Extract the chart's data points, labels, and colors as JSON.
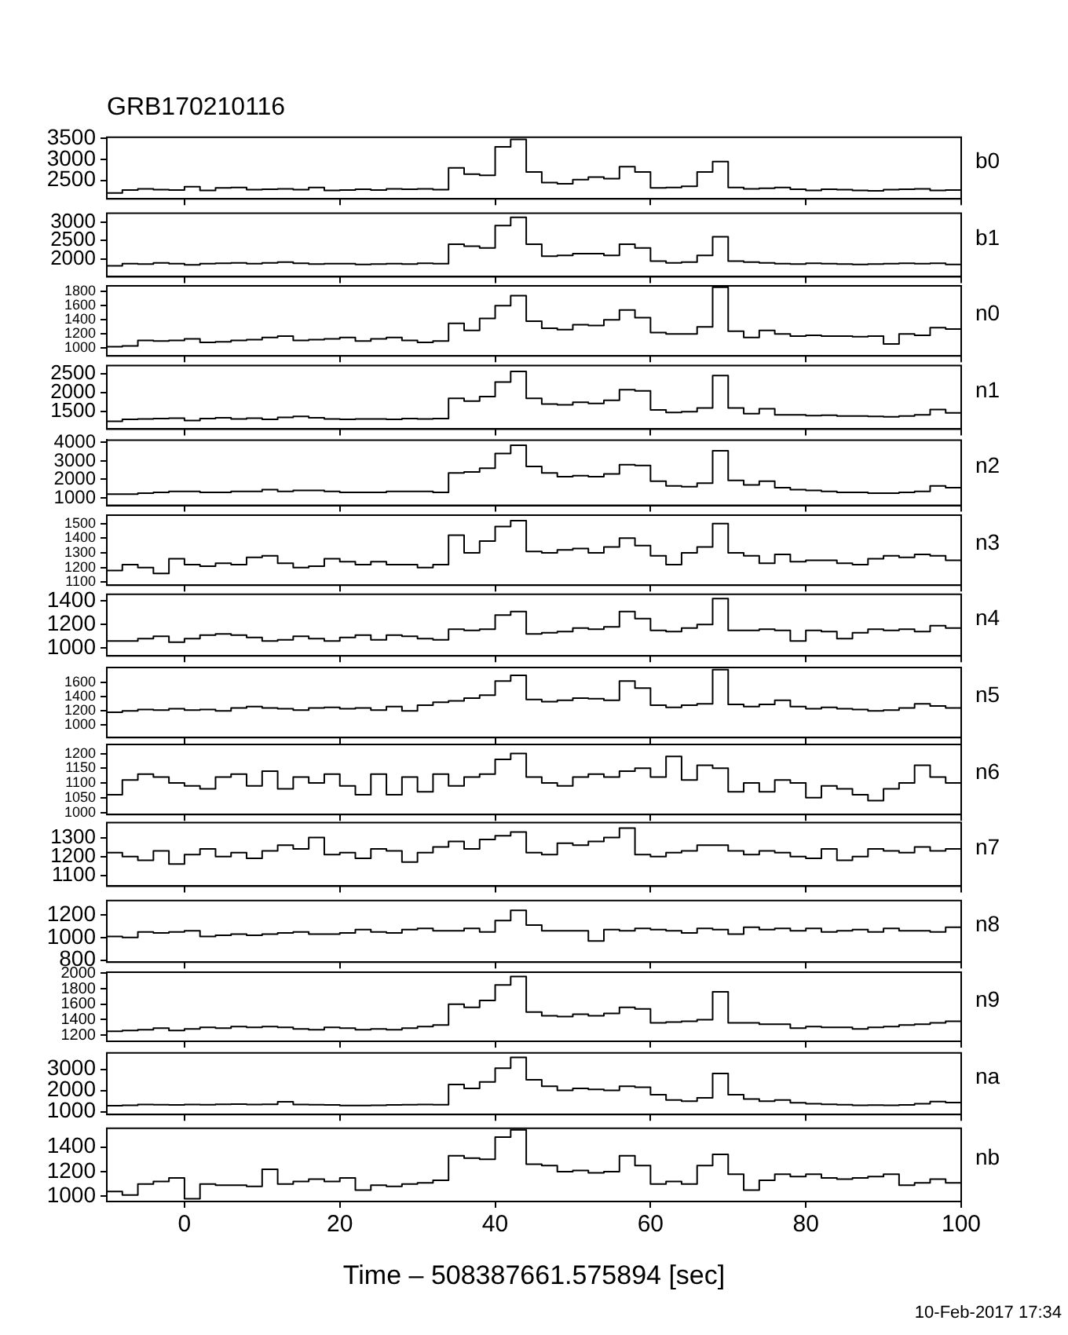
{
  "chart_data": [
    {
      "type": "step",
      "title": "GRB170210116",
      "x": [
        -10,
        -8,
        -6,
        -4,
        -2,
        0,
        2,
        4,
        6,
        8,
        10,
        12,
        14,
        16,
        18,
        20,
        22,
        24,
        26,
        28,
        30,
        32,
        34,
        36,
        38,
        40,
        42,
        44,
        46,
        48,
        50,
        52,
        54,
        56,
        58,
        60,
        62,
        64,
        66,
        68,
        70,
        72,
        74,
        76,
        78,
        80,
        82,
        84,
        86,
        88,
        90,
        92,
        94,
        96,
        98,
        100
      ],
      "xlim": [
        -10,
        100
      ],
      "xticks": [
        0,
        20,
        40,
        60,
        80,
        100
      ],
      "ylim": [
        2060,
        3530
      ],
      "yticks": [
        2500,
        3000,
        3500
      ],
      "tick_labels": "y",
      "series": [
        {
          "name": "b0",
          "color": "#000000",
          "values": [
            2200,
            2270,
            2300,
            2280,
            2270,
            2350,
            2260,
            2320,
            2330,
            2280,
            2290,
            2300,
            2280,
            2330,
            2260,
            2270,
            2290,
            2270,
            2300,
            2290,
            2300,
            2280,
            2800,
            2650,
            2620,
            3300,
            3480,
            2700,
            2450,
            2420,
            2520,
            2580,
            2540,
            2830,
            2700,
            2320,
            2330,
            2360,
            2700,
            2950,
            2330,
            2300,
            2310,
            2330,
            2290,
            2260,
            2290,
            2280,
            2260,
            2250,
            2280,
            2290,
            2300,
            2260,
            2270,
            2270
          ]
        }
      ]
    },
    {
      "type": "step",
      "x": [
        -10,
        -8,
        -6,
        -4,
        -2,
        0,
        2,
        4,
        6,
        8,
        10,
        12,
        14,
        16,
        18,
        20,
        22,
        24,
        26,
        28,
        30,
        32,
        34,
        36,
        38,
        40,
        42,
        44,
        46,
        48,
        50,
        52,
        54,
        56,
        58,
        60,
        62,
        64,
        66,
        68,
        70,
        72,
        74,
        76,
        78,
        80,
        82,
        84,
        86,
        88,
        90,
        92,
        94,
        96,
        98,
        100
      ],
      "xlim": [
        -10,
        100
      ],
      "xticks": [
        0,
        20,
        40,
        60,
        80,
        100
      ],
      "ylim": [
        1530,
        3230
      ],
      "yticks": [
        2000,
        2500,
        3000
      ],
      "tick_labels": "y",
      "series": [
        {
          "name": "b1",
          "color": "#000000",
          "values": [
            1820,
            1880,
            1870,
            1900,
            1880,
            1850,
            1880,
            1890,
            1900,
            1880,
            1900,
            1920,
            1890,
            1870,
            1880,
            1880,
            1860,
            1870,
            1880,
            1870,
            1890,
            1880,
            2400,
            2350,
            2300,
            2900,
            3120,
            2400,
            2080,
            2100,
            2150,
            2150,
            2100,
            2400,
            2300,
            1950,
            1900,
            1920,
            2100,
            2600,
            1950,
            1920,
            1900,
            1880,
            1870,
            1890,
            1880,
            1870,
            1860,
            1870,
            1880,
            1890,
            1880,
            1890,
            1860,
            1860
          ]
        }
      ]
    },
    {
      "type": "step",
      "x": [
        -10,
        -8,
        -6,
        -4,
        -2,
        0,
        2,
        4,
        6,
        8,
        10,
        12,
        14,
        16,
        18,
        20,
        22,
        24,
        26,
        28,
        30,
        32,
        34,
        36,
        38,
        40,
        42,
        44,
        46,
        48,
        50,
        52,
        54,
        56,
        58,
        60,
        62,
        64,
        66,
        68,
        70,
        72,
        74,
        76,
        78,
        80,
        82,
        84,
        86,
        88,
        90,
        92,
        94,
        96,
        98,
        100
      ],
      "xlim": [
        -10,
        100
      ],
      "xticks": [
        0,
        20,
        40,
        60,
        80,
        100
      ],
      "ylim": [
        890,
        1880
      ],
      "yticks": [
        1000,
        1200,
        1400,
        1600,
        1800
      ],
      "tick_labels": "y",
      "series": [
        {
          "name": "n0",
          "color": "#000000",
          "values": [
            1020,
            1030,
            1110,
            1100,
            1110,
            1130,
            1080,
            1090,
            1110,
            1120,
            1150,
            1170,
            1110,
            1120,
            1130,
            1150,
            1100,
            1130,
            1150,
            1110,
            1080,
            1100,
            1350,
            1250,
            1420,
            1600,
            1740,
            1380,
            1280,
            1260,
            1330,
            1320,
            1400,
            1540,
            1430,
            1220,
            1200,
            1200,
            1300,
            1860,
            1240,
            1150,
            1250,
            1200,
            1170,
            1180,
            1170,
            1170,
            1160,
            1170,
            1060,
            1200,
            1180,
            1290,
            1270,
            1270
          ]
        }
      ]
    },
    {
      "type": "step",
      "x": [
        -10,
        -8,
        -6,
        -4,
        -2,
        0,
        2,
        4,
        6,
        8,
        10,
        12,
        14,
        16,
        18,
        20,
        22,
        24,
        26,
        28,
        30,
        32,
        34,
        36,
        38,
        40,
        42,
        44,
        46,
        48,
        50,
        52,
        54,
        56,
        58,
        60,
        62,
        64,
        66,
        68,
        70,
        72,
        74,
        76,
        78,
        80,
        82,
        84,
        86,
        88,
        90,
        92,
        94,
        96,
        98,
        100
      ],
      "xlim": [
        -10,
        100
      ],
      "xticks": [
        0,
        20,
        40,
        60,
        80,
        100
      ],
      "ylim": [
        1045,
        2710
      ],
      "yticks": [
        1500,
        2000,
        2500
      ],
      "tick_labels": "y",
      "series": [
        {
          "name": "n1",
          "color": "#000000",
          "values": [
            1250,
            1300,
            1310,
            1320,
            1330,
            1270,
            1320,
            1340,
            1310,
            1330,
            1300,
            1350,
            1380,
            1340,
            1310,
            1300,
            1310,
            1310,
            1300,
            1320,
            1310,
            1320,
            1850,
            1780,
            1900,
            2280,
            2560,
            1850,
            1700,
            1680,
            1750,
            1720,
            1800,
            2080,
            2050,
            1550,
            1480,
            1500,
            1600,
            2450,
            1600,
            1450,
            1580,
            1420,
            1420,
            1400,
            1410,
            1390,
            1390,
            1380,
            1370,
            1390,
            1420,
            1560,
            1470,
            1470
          ]
        }
      ]
    },
    {
      "type": "step",
      "x": [
        -10,
        -8,
        -6,
        -4,
        -2,
        0,
        2,
        4,
        6,
        8,
        10,
        12,
        14,
        16,
        18,
        20,
        22,
        24,
        26,
        28,
        30,
        32,
        34,
        36,
        38,
        40,
        42,
        44,
        46,
        48,
        50,
        52,
        54,
        56,
        58,
        60,
        62,
        64,
        66,
        68,
        70,
        72,
        74,
        76,
        78,
        80,
        82,
        84,
        86,
        88,
        90,
        92,
        94,
        96,
        98,
        100
      ],
      "xlim": [
        -10,
        100
      ],
      "xticks": [
        0,
        20,
        40,
        60,
        80,
        100
      ],
      "ylim": [
        590,
        4130
      ],
      "yticks": [
        1000,
        2000,
        3000,
        4000
      ],
      "tick_labels": "y",
      "series": [
        {
          "name": "n2",
          "color": "#000000",
          "values": [
            1200,
            1200,
            1250,
            1300,
            1350,
            1350,
            1300,
            1300,
            1350,
            1350,
            1450,
            1350,
            1400,
            1400,
            1350,
            1300,
            1300,
            1300,
            1350,
            1350,
            1350,
            1300,
            2350,
            2400,
            2600,
            3400,
            3850,
            2700,
            2350,
            2150,
            2200,
            2150,
            2300,
            2800,
            2750,
            1900,
            1650,
            1600,
            1800,
            3550,
            1950,
            1700,
            1900,
            1550,
            1450,
            1400,
            1350,
            1300,
            1300,
            1250,
            1250,
            1300,
            1350,
            1650,
            1550,
            1550
          ]
        }
      ]
    },
    {
      "type": "step",
      "x": [
        -10,
        -8,
        -6,
        -4,
        -2,
        0,
        2,
        4,
        6,
        8,
        10,
        12,
        14,
        16,
        18,
        20,
        22,
        24,
        26,
        28,
        30,
        32,
        34,
        36,
        38,
        40,
        42,
        44,
        46,
        48,
        50,
        52,
        54,
        56,
        58,
        60,
        62,
        64,
        66,
        68,
        70,
        72,
        74,
        76,
        78,
        80,
        82,
        84,
        86,
        88,
        90,
        92,
        94,
        96,
        98,
        100
      ],
      "xlim": [
        -10,
        100
      ],
      "xticks": [
        0,
        20,
        40,
        60,
        80,
        100
      ],
      "ylim": [
        1080,
        1557
      ],
      "yticks": [
        1100,
        1200,
        1300,
        1400,
        1500
      ],
      "tick_labels": "y",
      "series": [
        {
          "name": "n3",
          "color": "#000000",
          "values": [
            1180,
            1220,
            1200,
            1160,
            1260,
            1220,
            1210,
            1230,
            1220,
            1270,
            1280,
            1230,
            1200,
            1210,
            1260,
            1240,
            1220,
            1240,
            1220,
            1220,
            1200,
            1220,
            1420,
            1300,
            1380,
            1480,
            1520,
            1310,
            1300,
            1320,
            1330,
            1300,
            1340,
            1400,
            1350,
            1280,
            1220,
            1300,
            1340,
            1500,
            1300,
            1280,
            1230,
            1290,
            1240,
            1250,
            1250,
            1230,
            1220,
            1260,
            1280,
            1270,
            1290,
            1280,
            1250,
            1250
          ]
        }
      ]
    },
    {
      "type": "step",
      "x": [
        -10,
        -8,
        -6,
        -4,
        -2,
        0,
        2,
        4,
        6,
        8,
        10,
        12,
        14,
        16,
        18,
        20,
        22,
        24,
        26,
        28,
        30,
        32,
        34,
        36,
        38,
        40,
        42,
        44,
        46,
        48,
        50,
        52,
        54,
        56,
        58,
        60,
        62,
        64,
        66,
        68,
        70,
        72,
        74,
        76,
        78,
        80,
        82,
        84,
        86,
        88,
        90,
        92,
        94,
        96,
        98,
        100
      ],
      "xlim": [
        -10,
        100
      ],
      "xticks": [
        0,
        20,
        40,
        60,
        80,
        100
      ],
      "ylim": [
        934,
        1456
      ],
      "yticks": [
        1000,
        1200,
        1400
      ],
      "tick_labels": "y",
      "series": [
        {
          "name": "n4",
          "color": "#000000",
          "values": [
            1060,
            1060,
            1080,
            1100,
            1050,
            1080,
            1110,
            1120,
            1110,
            1090,
            1060,
            1070,
            1100,
            1080,
            1060,
            1090,
            1110,
            1070,
            1110,
            1100,
            1080,
            1070,
            1160,
            1150,
            1160,
            1280,
            1310,
            1120,
            1130,
            1140,
            1170,
            1160,
            1180,
            1310,
            1250,
            1150,
            1140,
            1170,
            1200,
            1420,
            1150,
            1150,
            1160,
            1150,
            1060,
            1150,
            1140,
            1080,
            1130,
            1160,
            1150,
            1160,
            1140,
            1190,
            1170,
            1170
          ]
        }
      ]
    },
    {
      "type": "step",
      "x": [
        -10,
        -8,
        -6,
        -4,
        -2,
        0,
        2,
        4,
        6,
        8,
        10,
        12,
        14,
        16,
        18,
        20,
        22,
        24,
        26,
        28,
        30,
        32,
        34,
        36,
        38,
        40,
        42,
        44,
        46,
        48,
        50,
        52,
        54,
        56,
        58,
        60,
        62,
        64,
        66,
        68,
        70,
        72,
        74,
        76,
        78,
        80,
        82,
        84,
        86,
        88,
        90,
        92,
        94,
        96,
        98,
        100
      ],
      "xlim": [
        -10,
        100
      ],
      "xticks": [
        0,
        20,
        40,
        60,
        80,
        100
      ],
      "ylim": [
        825,
        1810
      ],
      "yticks": [
        1000,
        1200,
        1400,
        1600
      ],
      "tick_labels": "y",
      "series": [
        {
          "name": "n5",
          "color": "#000000",
          "values": [
            1180,
            1200,
            1220,
            1210,
            1230,
            1210,
            1220,
            1200,
            1240,
            1260,
            1240,
            1230,
            1210,
            1240,
            1250,
            1230,
            1240,
            1210,
            1260,
            1200,
            1280,
            1320,
            1340,
            1380,
            1420,
            1620,
            1700,
            1360,
            1330,
            1350,
            1380,
            1370,
            1350,
            1620,
            1520,
            1280,
            1250,
            1280,
            1300,
            1780,
            1290,
            1260,
            1290,
            1350,
            1260,
            1230,
            1250,
            1230,
            1220,
            1200,
            1210,
            1240,
            1300,
            1270,
            1240,
            1240
          ]
        }
      ]
    },
    {
      "type": "step",
      "x": [
        -10,
        -8,
        -6,
        -4,
        -2,
        0,
        2,
        4,
        6,
        8,
        10,
        12,
        14,
        16,
        18,
        20,
        22,
        24,
        26,
        28,
        30,
        32,
        34,
        36,
        38,
        40,
        42,
        44,
        46,
        48,
        50,
        52,
        54,
        56,
        58,
        60,
        62,
        64,
        66,
        68,
        70,
        72,
        74,
        76,
        78,
        80,
        82,
        84,
        86,
        88,
        90,
        92,
        94,
        96,
        98,
        100
      ],
      "xlim": [
        -10,
        100
      ],
      "xticks": [
        0,
        20,
        40,
        60,
        80,
        100
      ],
      "ylim": [
        993,
        1231
      ],
      "yticks": [
        1000,
        1050,
        1100,
        1150,
        1200
      ],
      "tick_labels": "y",
      "series": [
        {
          "name": "n6",
          "color": "#000000",
          "values": [
            1060,
            1110,
            1130,
            1120,
            1100,
            1090,
            1080,
            1120,
            1130,
            1090,
            1140,
            1080,
            1120,
            1100,
            1130,
            1090,
            1060,
            1130,
            1060,
            1120,
            1070,
            1130,
            1090,
            1120,
            1130,
            1180,
            1200,
            1120,
            1100,
            1090,
            1120,
            1130,
            1120,
            1140,
            1150,
            1120,
            1190,
            1110,
            1160,
            1150,
            1070,
            1100,
            1070,
            1110,
            1100,
            1050,
            1090,
            1080,
            1060,
            1040,
            1080,
            1100,
            1160,
            1120,
            1100,
            1100
          ]
        }
      ]
    },
    {
      "type": "step",
      "x": [
        -10,
        -8,
        -6,
        -4,
        -2,
        0,
        2,
        4,
        6,
        8,
        10,
        12,
        14,
        16,
        18,
        20,
        22,
        24,
        26,
        28,
        30,
        32,
        34,
        36,
        38,
        40,
        42,
        44,
        46,
        48,
        50,
        52,
        54,
        56,
        58,
        60,
        62,
        64,
        66,
        68,
        70,
        72,
        74,
        76,
        78,
        80,
        82,
        84,
        86,
        88,
        90,
        92,
        94,
        96,
        98,
        100
      ],
      "xlim": [
        -10,
        100
      ],
      "xticks": [
        0,
        20,
        40,
        60,
        80,
        100
      ],
      "ylim": [
        1043,
        1379
      ],
      "yticks": [
        1100,
        1200,
        1300
      ],
      "tick_labels": "y",
      "series": [
        {
          "name": "n7",
          "color": "#000000",
          "values": [
            1220,
            1200,
            1180,
            1230,
            1160,
            1210,
            1240,
            1200,
            1220,
            1190,
            1230,
            1260,
            1240,
            1300,
            1210,
            1220,
            1190,
            1240,
            1230,
            1170,
            1220,
            1250,
            1280,
            1240,
            1290,
            1310,
            1330,
            1220,
            1210,
            1270,
            1260,
            1280,
            1300,
            1350,
            1210,
            1200,
            1220,
            1230,
            1260,
            1260,
            1230,
            1210,
            1230,
            1220,
            1200,
            1190,
            1240,
            1180,
            1200,
            1240,
            1230,
            1220,
            1250,
            1230,
            1240,
            1240
          ]
        }
      ]
    },
    {
      "type": "step",
      "x": [
        -10,
        -8,
        -6,
        -4,
        -2,
        0,
        2,
        4,
        6,
        8,
        10,
        12,
        14,
        16,
        18,
        20,
        22,
        24,
        26,
        28,
        30,
        32,
        34,
        36,
        38,
        40,
        42,
        44,
        46,
        48,
        50,
        52,
        54,
        56,
        58,
        60,
        62,
        64,
        66,
        68,
        70,
        72,
        74,
        76,
        78,
        80,
        82,
        84,
        86,
        88,
        90,
        92,
        94,
        96,
        98,
        100
      ],
      "xlim": [
        -10,
        100
      ],
      "xticks": [
        0,
        20,
        40,
        60,
        80,
        100
      ],
      "ylim": [
        783,
        1326
      ],
      "yticks": [
        800,
        1000,
        1200
      ],
      "tick_labels": "y",
      "series": [
        {
          "name": "n8",
          "color": "#000000",
          "values": [
            1010,
            1000,
            1050,
            1040,
            1050,
            1060,
            1010,
            1020,
            1030,
            1020,
            1030,
            1040,
            1050,
            1030,
            1030,
            1040,
            1070,
            1050,
            1040,
            1070,
            1080,
            1060,
            1060,
            1080,
            1050,
            1150,
            1240,
            1110,
            1060,
            1060,
            1060,
            970,
            1070,
            1060,
            1080,
            1070,
            1060,
            1040,
            1080,
            1070,
            1030,
            1090,
            1070,
            1080,
            1060,
            1080,
            1050,
            1060,
            1070,
            1050,
            1080,
            1060,
            1060,
            1050,
            1090,
            1090
          ]
        }
      ]
    },
    {
      "type": "step",
      "x": [
        -10,
        -8,
        -6,
        -4,
        -2,
        0,
        2,
        4,
        6,
        8,
        10,
        12,
        14,
        16,
        18,
        20,
        22,
        24,
        26,
        28,
        30,
        32,
        34,
        36,
        38,
        40,
        42,
        44,
        46,
        48,
        50,
        52,
        54,
        56,
        58,
        60,
        62,
        64,
        66,
        68,
        70,
        72,
        74,
        76,
        78,
        80,
        82,
        84,
        86,
        88,
        90,
        92,
        94,
        96,
        98,
        100
      ],
      "xlim": [
        -10,
        100
      ],
      "xticks": [
        0,
        20,
        40,
        60,
        80,
        100
      ],
      "ylim": [
        1120,
        2015
      ],
      "yticks": [
        1200,
        1400,
        1600,
        1800,
        2000
      ],
      "tick_labels": "y",
      "series": [
        {
          "name": "n9",
          "color": "#000000",
          "values": [
            1250,
            1260,
            1270,
            1290,
            1260,
            1280,
            1300,
            1290,
            1310,
            1300,
            1310,
            1300,
            1280,
            1270,
            1300,
            1290,
            1270,
            1280,
            1270,
            1290,
            1310,
            1330,
            1600,
            1560,
            1650,
            1850,
            1960,
            1500,
            1450,
            1440,
            1470,
            1450,
            1480,
            1560,
            1540,
            1360,
            1370,
            1380,
            1400,
            1760,
            1360,
            1360,
            1340,
            1340,
            1290,
            1310,
            1300,
            1300,
            1280,
            1300,
            1310,
            1330,
            1340,
            1360,
            1380,
            1380
          ]
        }
      ]
    },
    {
      "type": "step",
      "x": [
        -10,
        -8,
        -6,
        -4,
        -2,
        0,
        2,
        4,
        6,
        8,
        10,
        12,
        14,
        16,
        18,
        20,
        22,
        24,
        26,
        28,
        30,
        32,
        34,
        36,
        38,
        40,
        42,
        44,
        46,
        48,
        50,
        52,
        54,
        56,
        58,
        60,
        62,
        64,
        66,
        68,
        70,
        72,
        74,
        76,
        78,
        80,
        82,
        84,
        86,
        88,
        90,
        92,
        94,
        96,
        98,
        100
      ],
      "xlim": [
        -10,
        100
      ],
      "xticks": [
        0,
        20,
        40,
        60,
        80,
        100
      ],
      "ylim": [
        870,
        3765
      ],
      "yticks": [
        1000,
        2000,
        3000
      ],
      "tick_labels": "y",
      "series": [
        {
          "name": "na",
          "color": "#000000",
          "values": [
            1280,
            1300,
            1340,
            1330,
            1320,
            1340,
            1330,
            1350,
            1360,
            1340,
            1350,
            1470,
            1340,
            1330,
            1320,
            1290,
            1290,
            1300,
            1320,
            1330,
            1340,
            1330,
            2280,
            2100,
            2400,
            3050,
            3550,
            2500,
            2200,
            2000,
            2100,
            2050,
            2000,
            2200,
            2150,
            1800,
            1550,
            1500,
            1650,
            2800,
            1800,
            1600,
            1500,
            1550,
            1420,
            1380,
            1350,
            1330,
            1300,
            1310,
            1300,
            1320,
            1380,
            1480,
            1430,
            1430
          ]
        }
      ]
    },
    {
      "type": "step",
      "xlabel": "Time – 508387661.575894 [sec]",
      "annotations": [
        "10-Feb-2017 17:34"
      ],
      "x": [
        -10,
        -8,
        -6,
        -4,
        -2,
        0,
        2,
        4,
        6,
        8,
        10,
        12,
        14,
        16,
        18,
        20,
        22,
        24,
        26,
        28,
        30,
        32,
        34,
        36,
        38,
        40,
        42,
        44,
        46,
        48,
        50,
        52,
        54,
        56,
        58,
        60,
        62,
        64,
        66,
        68,
        70,
        72,
        74,
        76,
        78,
        80,
        82,
        84,
        86,
        88,
        90,
        92,
        94,
        96,
        98,
        100
      ],
      "xlim": [
        -10,
        100
      ],
      "xticks": [
        0,
        20,
        40,
        60,
        80,
        100
      ],
      "ylim": [
        958,
        1552
      ],
      "yticks": [
        1000,
        1200,
        1400
      ],
      "series": [
        {
          "name": "nb",
          "color": "#000000",
          "values": [
            1040,
            1010,
            1100,
            1120,
            1150,
            980,
            1100,
            1090,
            1090,
            1080,
            1220,
            1100,
            1120,
            1140,
            1120,
            1150,
            1050,
            1090,
            1080,
            1100,
            1110,
            1130,
            1330,
            1310,
            1300,
            1480,
            1540,
            1260,
            1250,
            1200,
            1210,
            1190,
            1200,
            1330,
            1250,
            1100,
            1120,
            1100,
            1250,
            1340,
            1180,
            1050,
            1130,
            1180,
            1160,
            1180,
            1150,
            1140,
            1150,
            1160,
            1180,
            1090,
            1110,
            1140,
            1110,
            1110
          ]
        }
      ]
    }
  ]
}
